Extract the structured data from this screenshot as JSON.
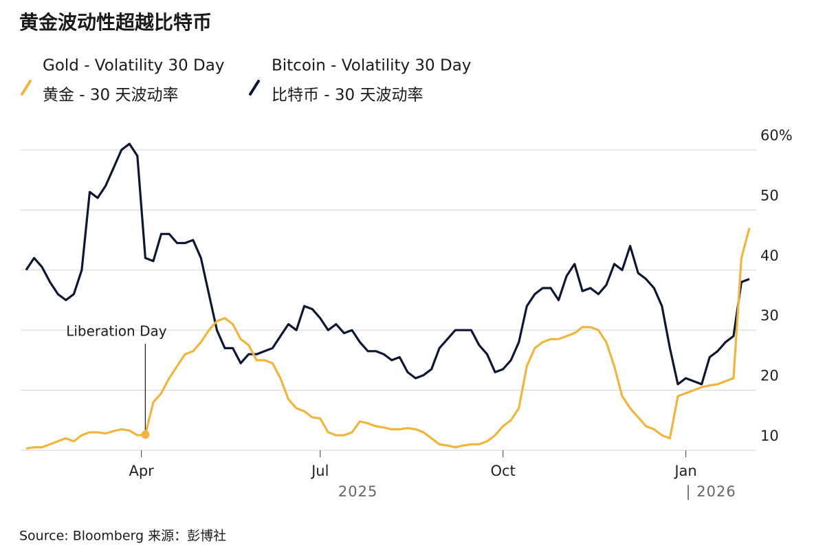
{
  "chart_data": {
    "type": "line",
    "title": "黄金波动性超越比特币",
    "source": "Source: Bloomberg 来源：彭博社",
    "xlim": [
      0,
      364
    ],
    "xticks": [
      {
        "value": 58,
        "label": "Apr"
      },
      {
        "value": 148,
        "label": "Jul"
      },
      {
        "value": 240,
        "label": "Oct"
      },
      {
        "value": 332,
        "label": "Jan"
      }
    ],
    "year_labels": [
      {
        "value": 167,
        "label": "2025"
      },
      {
        "value": 332,
        "label": "| 2026"
      }
    ],
    "ylim": [
      10,
      62
    ],
    "yticks": [
      10,
      20,
      30,
      40,
      50,
      {
        "value": 60,
        "label": "60%"
      }
    ],
    "grid": true,
    "annotation": {
      "text": "Liberation Day",
      "x": 60,
      "series": 0,
      "index": 15
    },
    "x": [
      0,
      4,
      8,
      12,
      16,
      20,
      24,
      28,
      32,
      36,
      40,
      44,
      48,
      52,
      56,
      60,
      64,
      68,
      72,
      76,
      80,
      84,
      88,
      92,
      96,
      100,
      104,
      108,
      112,
      116,
      120,
      124,
      128,
      132,
      136,
      140,
      144,
      148,
      152,
      156,
      160,
      164,
      168,
      172,
      176,
      180,
      184,
      188,
      192,
      196,
      200,
      204,
      208,
      212,
      216,
      220,
      224,
      228,
      232,
      236,
      240,
      244,
      248,
      252,
      256,
      260,
      264,
      268,
      272,
      276,
      280,
      284,
      288,
      292,
      296,
      300,
      304,
      308,
      312,
      316,
      320,
      324,
      328,
      332,
      336,
      340,
      344,
      348,
      352,
      356,
      360,
      364
    ],
    "series": [
      {
        "name": "Gold - Volatility 30 Day",
        "name_cn": "黄金 - 30 天波动率",
        "color": "#f2b53a",
        "values": [
          10.3,
          10.5,
          10.5,
          11,
          11.5,
          12,
          11.5,
          12.5,
          13,
          13,
          12.8,
          13.2,
          13.5,
          13.3,
          12.5,
          12.6,
          18,
          19.5,
          22,
          24,
          26,
          26.5,
          28,
          30,
          31.5,
          32,
          31,
          28.5,
          27.5,
          25,
          25,
          24.5,
          22,
          18.5,
          17,
          16.5,
          15.5,
          15.3,
          13,
          12.5,
          12.5,
          13,
          14.8,
          14.5,
          14,
          13.8,
          13.5,
          13.5,
          13.7,
          13.5,
          13,
          12,
          11,
          10.8,
          10.5,
          10.8,
          11,
          11,
          11.5,
          12.5,
          14,
          15,
          17,
          24,
          27,
          28,
          28.5,
          28.5,
          29,
          29.5,
          30.5,
          30.5,
          30,
          28,
          24,
          19,
          17,
          15.5,
          14,
          13.5,
          12.5,
          12,
          19,
          19.5,
          20,
          20.5,
          20.8,
          21,
          21.5,
          22,
          42,
          47
        ]
      },
      {
        "name": "Bitcoin - Volatility 30 Day",
        "name_cn": "比特币 - 30 天波动率",
        "color": "#0d1633",
        "values": [
          40,
          42,
          40.5,
          38,
          36,
          35,
          36,
          40,
          53,
          52,
          54,
          57,
          60,
          61,
          59,
          42,
          41.5,
          46,
          46,
          44.5,
          44.5,
          45,
          42,
          36,
          30,
          27,
          27,
          24.5,
          26,
          26,
          26.5,
          27,
          29,
          31,
          30,
          34,
          33.5,
          32,
          30,
          31,
          29.5,
          30,
          28,
          26.5,
          26.5,
          26,
          25,
          25.5,
          23,
          22,
          22.5,
          23.5,
          27,
          28.5,
          30,
          30,
          30,
          27.5,
          26,
          23,
          23.5,
          25,
          28,
          34,
          36,
          37,
          37,
          35,
          39,
          41,
          36.5,
          37,
          36,
          37.5,
          41,
          40,
          44,
          39.5,
          38.5,
          37,
          34,
          27,
          21,
          22,
          21.5,
          21,
          25.5,
          26.5,
          28,
          29,
          38,
          38.5
        ]
      }
    ]
  }
}
